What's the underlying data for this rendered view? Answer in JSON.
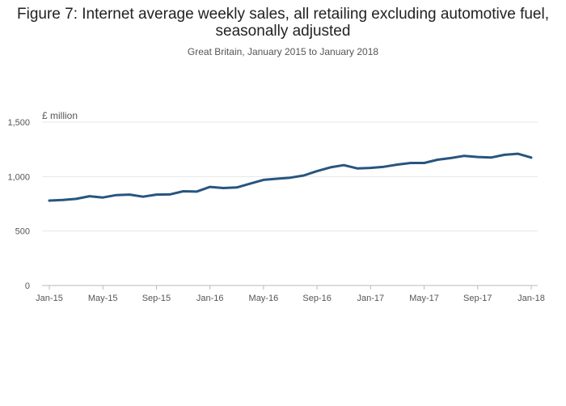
{
  "header": {
    "title": "Figure 7: Internet average weekly sales, all retailing excluding automotive fuel, seasonally adjusted",
    "subtitle": "Great Britain, January 2015 to January 2018"
  },
  "chart_data": {
    "type": "line",
    "title": "Figure 7: Internet average weekly sales, all retailing excluding automotive fuel, seasonally adjusted",
    "subtitle": "Great Britain, January 2015 to January 2018",
    "ylabel": "£ million",
    "xlabel": "",
    "ylim": [
      0,
      1500
    ],
    "yticks": [
      0,
      500,
      1000,
      1500
    ],
    "ytick_labels": [
      "0",
      "500",
      "1,000",
      "1,500"
    ],
    "xtick_labels": [
      "Jan-15",
      "May-15",
      "Sep-15",
      "Jan-16",
      "May-16",
      "Sep-16",
      "Jan-17",
      "May-17",
      "Sep-17",
      "Jan-18"
    ],
    "grid": true,
    "color": "#27557f",
    "x": [
      "Jan-15",
      "Feb-15",
      "Mar-15",
      "Apr-15",
      "May-15",
      "Jun-15",
      "Jul-15",
      "Aug-15",
      "Sep-15",
      "Oct-15",
      "Nov-15",
      "Dec-15",
      "Jan-16",
      "Feb-16",
      "Mar-16",
      "Apr-16",
      "May-16",
      "Jun-16",
      "Jul-16",
      "Aug-16",
      "Sep-16",
      "Oct-16",
      "Nov-16",
      "Dec-16",
      "Jan-17",
      "Feb-17",
      "Mar-17",
      "Apr-17",
      "May-17",
      "Jun-17",
      "Jul-17",
      "Aug-17",
      "Sep-17",
      "Oct-17",
      "Nov-17",
      "Dec-17",
      "Jan-18"
    ],
    "values": [
      780,
      785,
      795,
      820,
      808,
      830,
      835,
      815,
      835,
      836,
      865,
      862,
      905,
      895,
      900,
      935,
      970,
      980,
      990,
      1010,
      1050,
      1085,
      1105,
      1075,
      1080,
      1090,
      1110,
      1125,
      1125,
      1155,
      1170,
      1190,
      1180,
      1175,
      1200,
      1210,
      1175
    ]
  }
}
